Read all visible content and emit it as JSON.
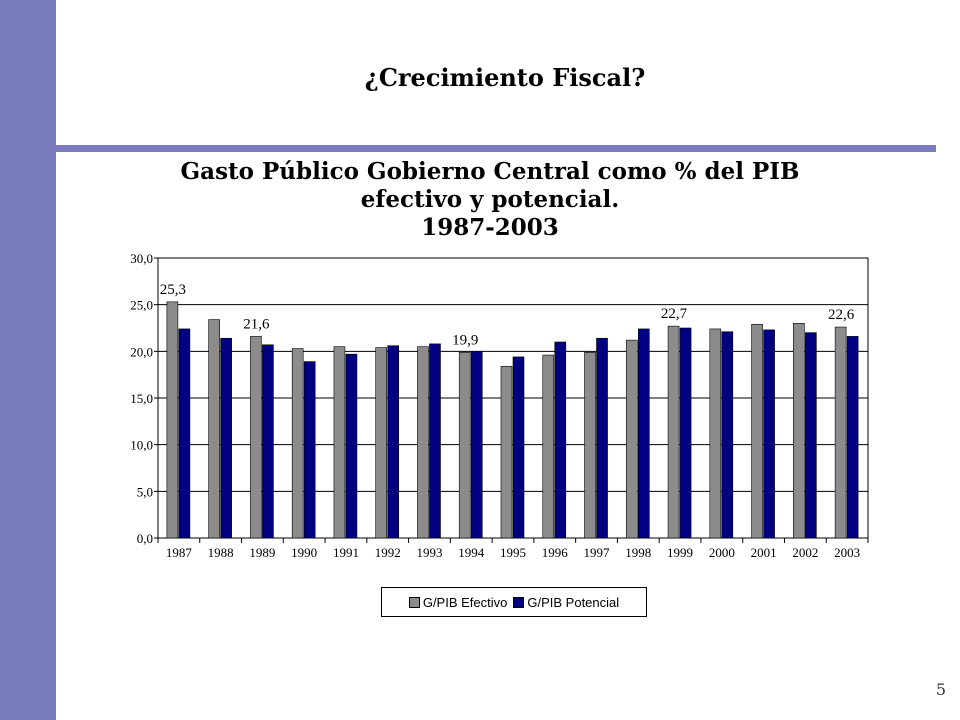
{
  "slide": {
    "title": "¿Crecimiento Fiscal?",
    "page_number": "5"
  },
  "colors": {
    "accent": "#7b7bc0",
    "series_efectivo": "#8c8c8c",
    "series_potencial": "#000080"
  },
  "chart_data": {
    "type": "bar",
    "title_lines": [
      "Gasto Público Gobierno Central como % del PIB",
      "efectivo y potencial.",
      "1987-2003"
    ],
    "categories": [
      "1987",
      "1988",
      "1989",
      "1990",
      "1991",
      "1992",
      "1993",
      "1994",
      "1995",
      "1996",
      "1997",
      "1998",
      "1999",
      "2000",
      "2001",
      "2002",
      "2003"
    ],
    "series": [
      {
        "name": "G/PIB Efectivo",
        "values": [
          25.3,
          23.4,
          21.6,
          20.3,
          20.5,
          20.4,
          20.5,
          19.9,
          18.4,
          19.6,
          19.9,
          21.2,
          22.7,
          22.4,
          22.9,
          23.0,
          22.6
        ]
      },
      {
        "name": "G/PIB Potencial",
        "values": [
          22.4,
          21.4,
          20.7,
          18.9,
          19.7,
          20.6,
          20.8,
          20.0,
          19.4,
          21.0,
          21.4,
          22.4,
          22.5,
          22.1,
          22.3,
          22.0,
          21.6
        ]
      }
    ],
    "ylim": [
      0,
      30
    ],
    "yticks": [
      "0,0",
      "5,0",
      "10,0",
      "15,0",
      "20,0",
      "25,0",
      "30,0"
    ],
    "data_labels": [
      {
        "category": "1987",
        "text": "25,3"
      },
      {
        "category": "1989",
        "text": "21,6"
      },
      {
        "category": "1994",
        "text": "19,9"
      },
      {
        "category": "1999",
        "text": "22,7"
      },
      {
        "category": "2003",
        "text": "22,6"
      }
    ],
    "grid": true,
    "legend": "bottom"
  }
}
